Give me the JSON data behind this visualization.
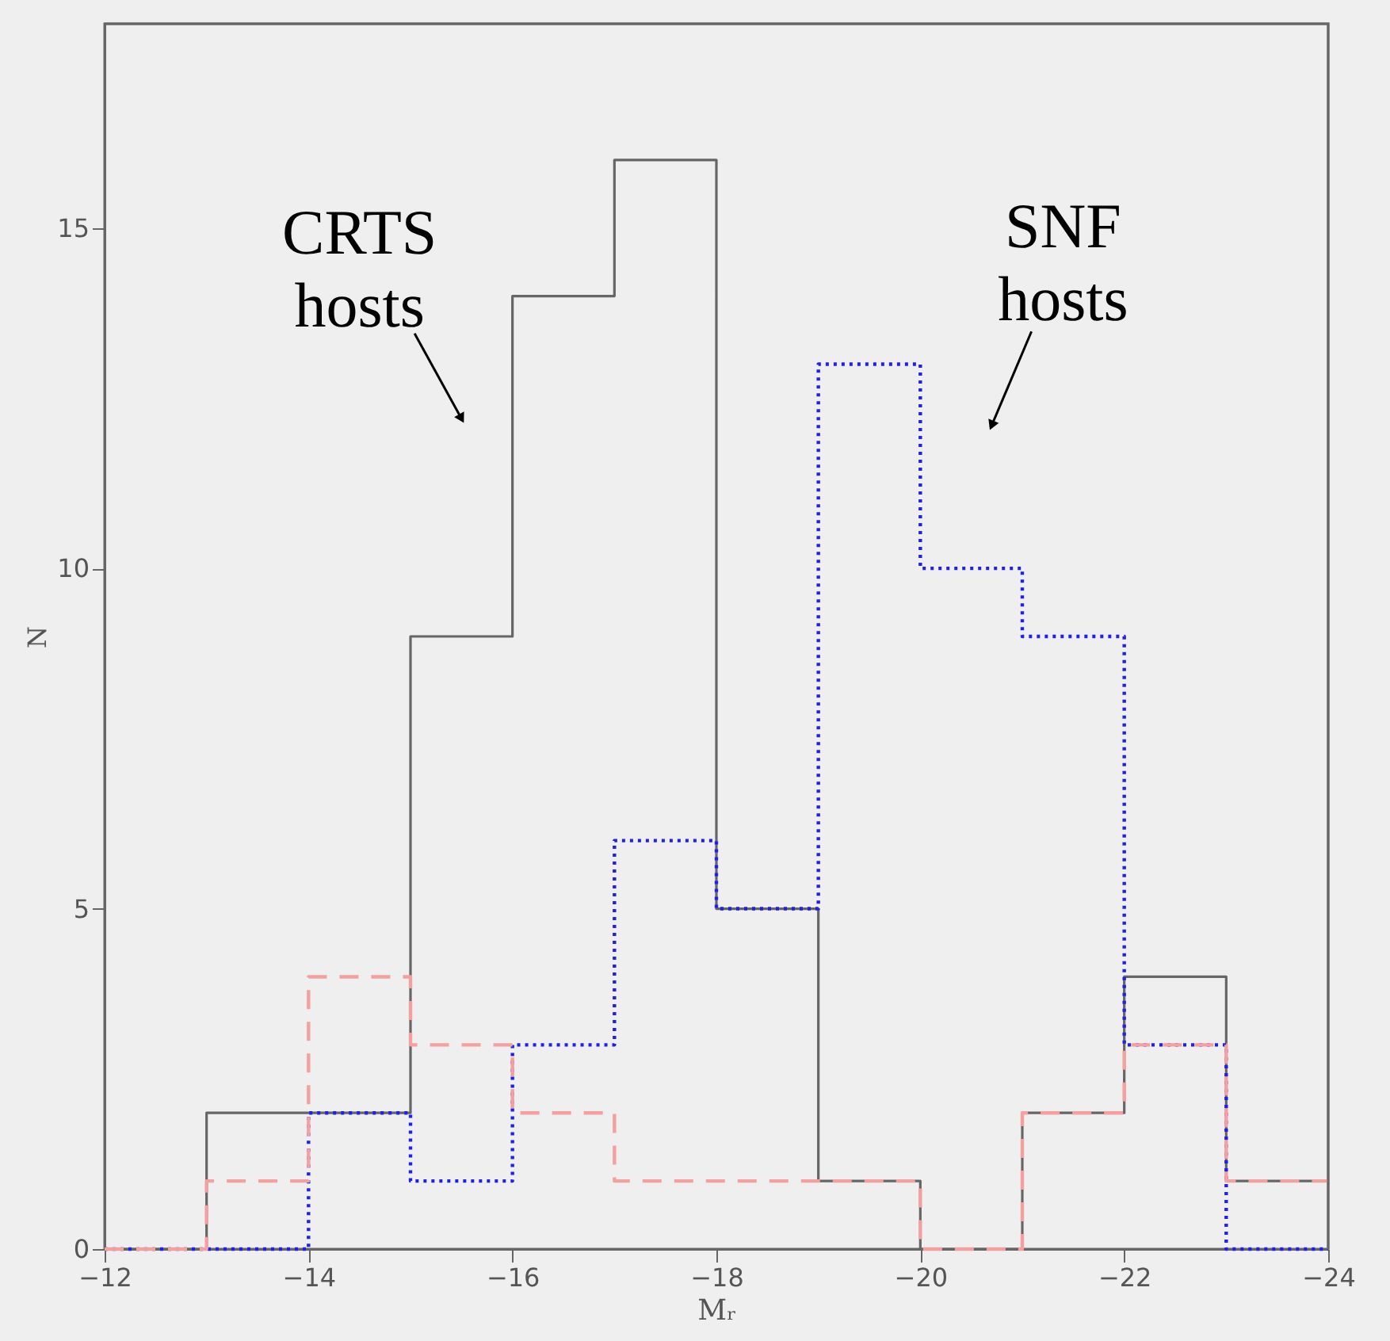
{
  "chart_data": {
    "type": "histogram",
    "xlabel": "Mᵣ",
    "ylabel": "N",
    "bins": [
      -12,
      -13,
      -14,
      -15,
      -16,
      -17,
      -18,
      -19,
      -20,
      -21,
      -22,
      -23,
      -24
    ],
    "series": [
      {
        "color": "#666666",
        "line_style": "solid",
        "values": [
          0,
          2,
          2,
          9,
          14,
          16,
          5,
          1,
          0,
          2,
          4,
          1
        ]
      },
      {
        "color": "#2020ee",
        "line_style": "dotted",
        "values": [
          0,
          0,
          2,
          1,
          3,
          6,
          5,
          13,
          10,
          9,
          3,
          0
        ]
      },
      {
        "color": "#f4a0a0",
        "line_style": "dashed",
        "values": [
          0,
          1,
          4,
          3,
          2,
          1,
          1,
          1,
          0,
          2,
          3,
          1
        ]
      }
    ],
    "xlim": [
      -12,
      -24
    ],
    "xticks": [
      -12,
      -14,
      -16,
      -18,
      -20,
      -22,
      -24
    ],
    "ylim": [
      0,
      18
    ],
    "yticks": [
      0,
      5,
      10,
      15
    ],
    "annotations": [
      "CRTS\nhosts",
      "SNF\nhosts"
    ],
    "grid": false
  }
}
